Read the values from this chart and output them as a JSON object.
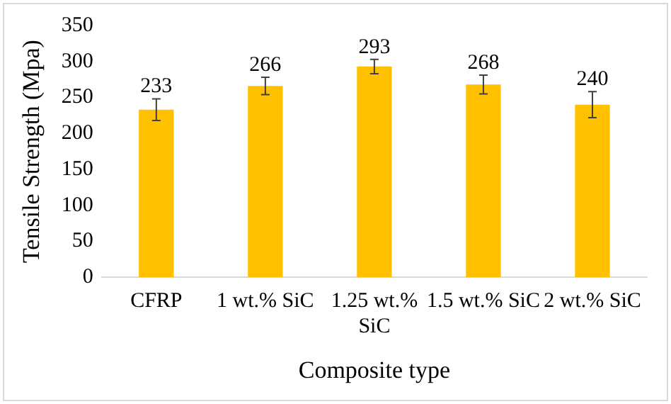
{
  "chart_data": {
    "type": "bar",
    "xlabel": "Composite type",
    "ylabel": "Tensile Strength (Mpa)",
    "categories": [
      "CFRP",
      "1 wt.% SiC",
      "1.25 wt.% SiC",
      "1.5 wt.% SiC",
      "2 wt.% SiC"
    ],
    "values": [
      233,
      266,
      293,
      268,
      240
    ],
    "errors": [
      15,
      12,
      10,
      13,
      18
    ],
    "color": "#ffc000",
    "ylim": [
      0,
      350
    ],
    "yticks": [
      0,
      50,
      100,
      150,
      200,
      250,
      300,
      350
    ],
    "data_labels": true,
    "grid": false,
    "legend": false
  }
}
